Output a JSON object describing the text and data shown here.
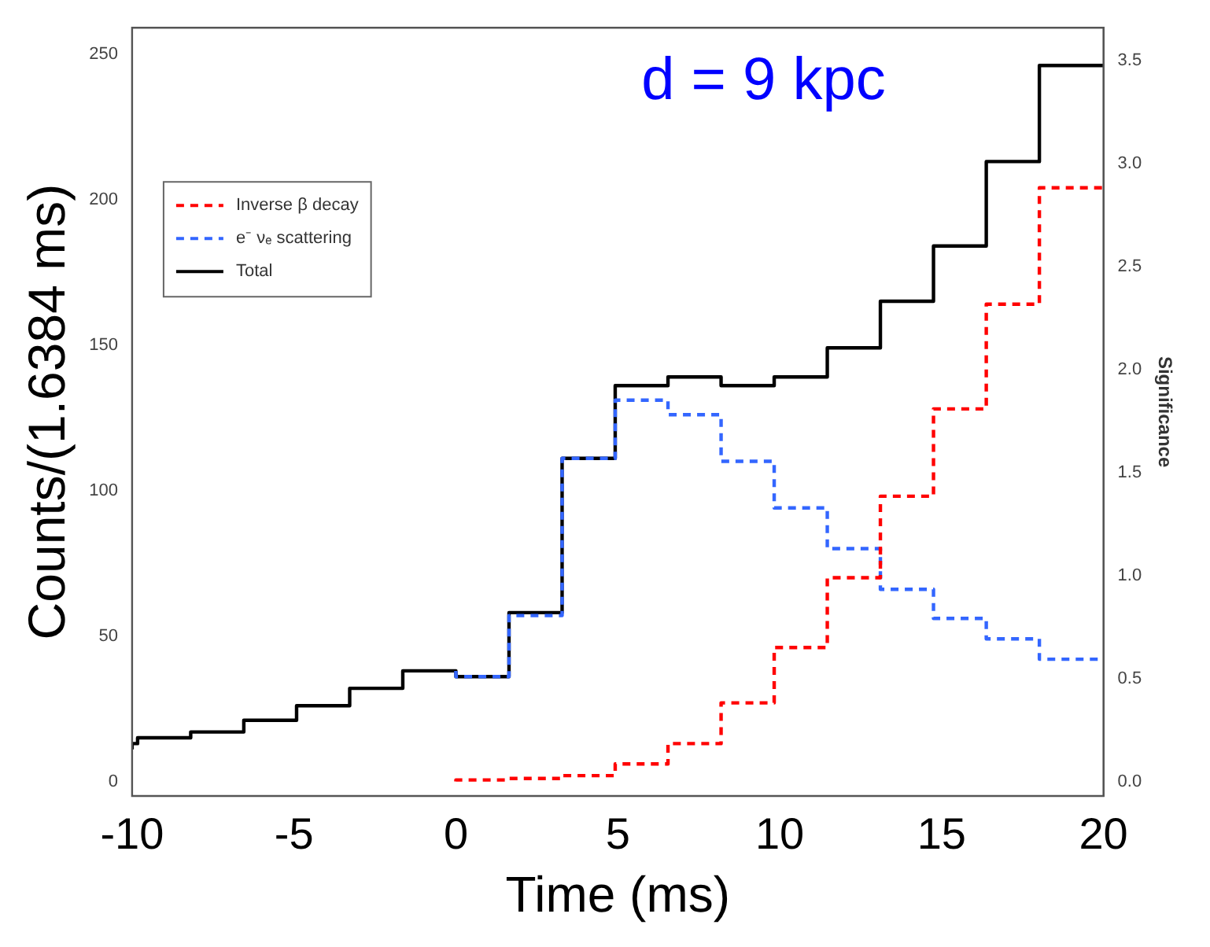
{
  "chart_data": {
    "type": "step",
    "xlabel": "Time (ms)",
    "ylabel": "Counts/(1.6384 ms)",
    "y2label": "Significance",
    "annotations": [
      "d = 9 kpc"
    ],
    "series": [
      {
        "name": "Inverse β decay",
        "color": "#ff0000",
        "line_style": "dashed",
        "x": [
          0,
          1.64,
          3.28,
          4.92,
          6.55,
          8.19,
          9.83,
          11.47,
          13.11,
          14.75,
          16.38,
          18.02,
          19.66,
          20
        ],
        "values": [
          0,
          0.5,
          1,
          2,
          6,
          13,
          27,
          46,
          70,
          98,
          128,
          164,
          204,
          204
        ]
      },
      {
        "name": "e⁻ νₑ scattering",
        "color": "#3366ff",
        "line_style": "dashed",
        "x": [
          0,
          1.64,
          3.28,
          4.92,
          6.55,
          8.19,
          9.83,
          11.47,
          13.11,
          14.75,
          16.38,
          18.02,
          19.66,
          20
        ],
        "values": [
          38,
          36,
          57,
          111,
          131,
          126,
          110,
          94,
          80,
          66,
          56,
          49,
          42,
          42
        ]
      },
      {
        "name": "Total",
        "color": "#000000",
        "line_style": "solid",
        "x": [
          -10,
          -9.83,
          -8.19,
          -6.55,
          -4.92,
          -3.28,
          -1.64,
          0,
          1.64,
          3.28,
          4.92,
          6.55,
          8.19,
          9.83,
          11.47,
          13.11,
          14.75,
          16.38,
          18.02,
          19.66,
          20
        ],
        "values": [
          11,
          13,
          15,
          17,
          21,
          26,
          32,
          38,
          36,
          58,
          111,
          136,
          139,
          136,
          139,
          149,
          165,
          184,
          213,
          246,
          246
        ]
      }
    ],
    "xlim": [
      -10,
      20
    ],
    "xticks": [
      -10,
      -5,
      0,
      5,
      10,
      15,
      20
    ],
    "ylim": [
      -5,
      259
    ],
    "yticks": [
      0,
      50,
      100,
      150,
      200,
      250
    ],
    "y2lim": [
      -0.07,
      3.66
    ],
    "y2ticks": [
      {
        "value": 0,
        "label": "0.0"
      },
      {
        "value": 0.5,
        "label": "0.5"
      },
      {
        "value": 1,
        "label": "1.0"
      },
      {
        "value": 1.5,
        "label": "1.5"
      },
      {
        "value": 2,
        "label": "2.0"
      },
      {
        "value": 2.5,
        "label": "2.5"
      },
      {
        "value": 3,
        "label": "3.0"
      },
      {
        "value": 3.5,
        "label": "3.5"
      }
    ],
    "legend": "top left"
  }
}
